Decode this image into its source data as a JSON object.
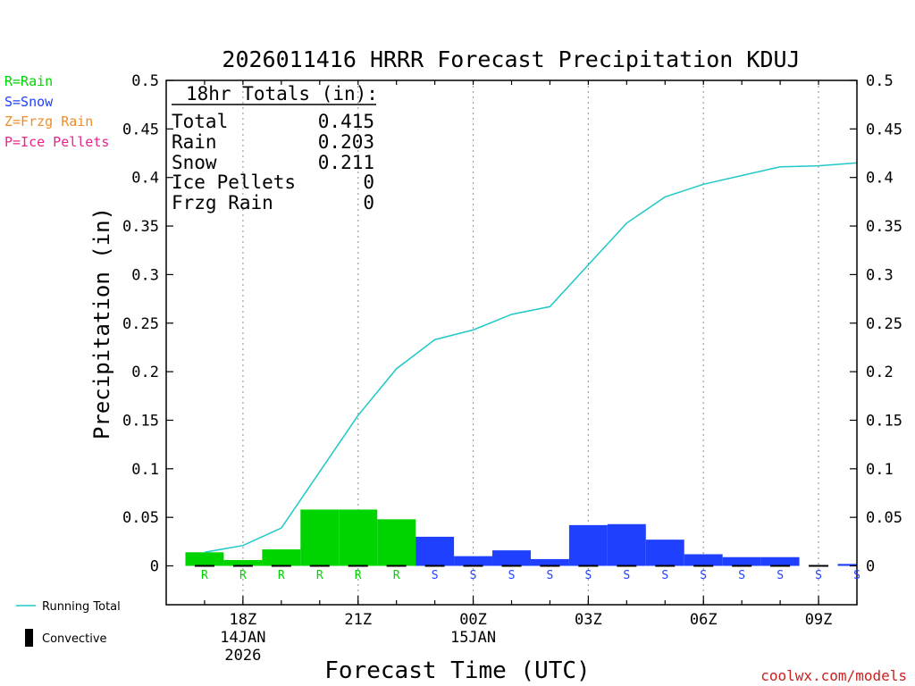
{
  "chart_data": {
    "type": "bar",
    "title": "2026011416 HRRR Forecast Precipitation KDUJ",
    "xlabel": "Forecast Time (UTC)",
    "ylabel": "Precipitation (in)",
    "ylim": [
      -0.04,
      0.5
    ],
    "y_ticks": [
      0,
      0.05,
      0.1,
      0.15,
      0.2,
      0.25,
      0.3,
      0.35,
      0.4,
      0.45,
      0.5
    ],
    "y_tick_labels": [
      "0",
      "0.05",
      "0.1",
      "0.15",
      "0.2",
      "0.25",
      "0.3",
      "0.35",
      "0.4",
      "0.45",
      "0.5"
    ],
    "x_range_hours": [
      16.0,
      34.0
    ],
    "x_ticks": [
      {
        "hour": 18,
        "lines": [
          "18Z",
          "14JAN",
          "2026"
        ]
      },
      {
        "hour": 21,
        "lines": [
          "21Z"
        ]
      },
      {
        "hour": 24,
        "lines": [
          "00Z",
          "15JAN"
        ]
      },
      {
        "hour": 27,
        "lines": [
          "03Z"
        ]
      },
      {
        "hour": 30,
        "lines": [
          "06Z"
        ]
      },
      {
        "hour": 33,
        "lines": [
          "09Z"
        ]
      }
    ],
    "grid_hours": [
      17,
      18,
      19,
      20,
      21,
      22,
      23,
      24,
      25,
      26,
      27,
      28,
      29,
      30,
      31,
      32,
      33,
      34
    ],
    "hourly": [
      {
        "start": 16.5,
        "end": 17.5,
        "value": 0.014,
        "type": "R"
      },
      {
        "start": 17.5,
        "end": 18.5,
        "value": 0.006,
        "type": "R"
      },
      {
        "start": 18.5,
        "end": 19.5,
        "value": 0.017,
        "type": "R"
      },
      {
        "start": 19.5,
        "end": 20.5,
        "value": 0.058,
        "type": "R"
      },
      {
        "start": 20.5,
        "end": 21.5,
        "value": 0.058,
        "type": "R"
      },
      {
        "start": 21.5,
        "end": 22.5,
        "value": 0.048,
        "type": "R"
      },
      {
        "start": 22.5,
        "end": 23.5,
        "value": 0.03,
        "type": "S"
      },
      {
        "start": 23.5,
        "end": 24.5,
        "value": 0.01,
        "type": "S"
      },
      {
        "start": 24.5,
        "end": 25.5,
        "value": 0.016,
        "type": "S"
      },
      {
        "start": 25.5,
        "end": 26.5,
        "value": 0.007,
        "type": "S"
      },
      {
        "start": 26.5,
        "end": 27.5,
        "value": 0.042,
        "type": "S"
      },
      {
        "start": 27.5,
        "end": 28.5,
        "value": 0.043,
        "type": "S"
      },
      {
        "start": 28.5,
        "end": 29.5,
        "value": 0.027,
        "type": "S"
      },
      {
        "start": 29.5,
        "end": 30.5,
        "value": 0.012,
        "type": "S"
      },
      {
        "start": 30.5,
        "end": 31.5,
        "value": 0.009,
        "type": "S"
      },
      {
        "start": 31.5,
        "end": 32.5,
        "value": 0.009,
        "type": "S"
      },
      {
        "start": 32.5,
        "end": 33.5,
        "value": 0.0,
        "type": "S"
      },
      {
        "start": 33.5,
        "end": 34.0,
        "value": 0.002,
        "type": "S"
      }
    ],
    "type_markers": [
      {
        "hour": 17,
        "label": "R"
      },
      {
        "hour": 18,
        "label": "R"
      },
      {
        "hour": 19,
        "label": "R"
      },
      {
        "hour": 20,
        "label": "R"
      },
      {
        "hour": 21,
        "label": "R"
      },
      {
        "hour": 22,
        "label": "R"
      },
      {
        "hour": 23,
        "label": "S"
      },
      {
        "hour": 24,
        "label": "S"
      },
      {
        "hour": 25,
        "label": "S"
      },
      {
        "hour": 26,
        "label": "S"
      },
      {
        "hour": 27,
        "label": "S"
      },
      {
        "hour": 28,
        "label": "S"
      },
      {
        "hour": 29,
        "label": "S"
      },
      {
        "hour": 30,
        "label": "S"
      },
      {
        "hour": 31,
        "label": "S"
      },
      {
        "hour": 32,
        "label": "S"
      },
      {
        "hour": 33,
        "label": "S"
      },
      {
        "hour": 34,
        "label": "S"
      }
    ],
    "convective_hours": [
      17,
      18,
      19,
      20,
      21,
      22,
      23,
      24,
      25,
      26,
      27,
      28,
      29,
      30,
      31,
      32,
      33
    ],
    "running_total": {
      "name": "Running Total",
      "x": [
        17,
        18,
        19,
        20,
        21,
        22,
        23,
        24,
        25,
        26,
        27,
        28,
        29,
        30,
        31,
        32,
        33,
        34
      ],
      "y": [
        0.014,
        0.021,
        0.039,
        0.097,
        0.155,
        0.203,
        0.233,
        0.243,
        0.259,
        0.267,
        0.31,
        0.353,
        0.38,
        0.393,
        0.402,
        0.411,
        0.412,
        0.415
      ]
    },
    "totals_box": {
      "heading": "18hr Totals (in):",
      "rows": [
        {
          "label": "Total",
          "value": "0.415"
        },
        {
          "label": "Rain",
          "value": "0.203"
        },
        {
          "label": "Snow",
          "value": "0.211"
        },
        {
          "label": "Ice Pellets",
          "value": "0"
        },
        {
          "label": "Frzg Rain",
          "value": "0"
        }
      ]
    },
    "type_legend": [
      {
        "text": "R=Rain",
        "color": "#00d400"
      },
      {
        "text": "S=Snow",
        "color": "#2040ff"
      },
      {
        "text": "Z=Frzg Rain",
        "color": "#f08c28"
      },
      {
        "text": "P=Ice Pellets",
        "color": "#e8248c"
      }
    ],
    "series_legend": [
      {
        "text": "Running Total",
        "kind": "line",
        "color": "#20c8c8"
      },
      {
        "text": "Convective",
        "kind": "bar",
        "color": "#000000"
      }
    ],
    "credit": "coolwx.com/models"
  },
  "colors": {
    "rain": "#00d400",
    "snow": "#2040ff",
    "running_total": "#20c8c8",
    "credit": "#cc2020",
    "axis": "#000000",
    "grid": "#a0a0a0"
  }
}
